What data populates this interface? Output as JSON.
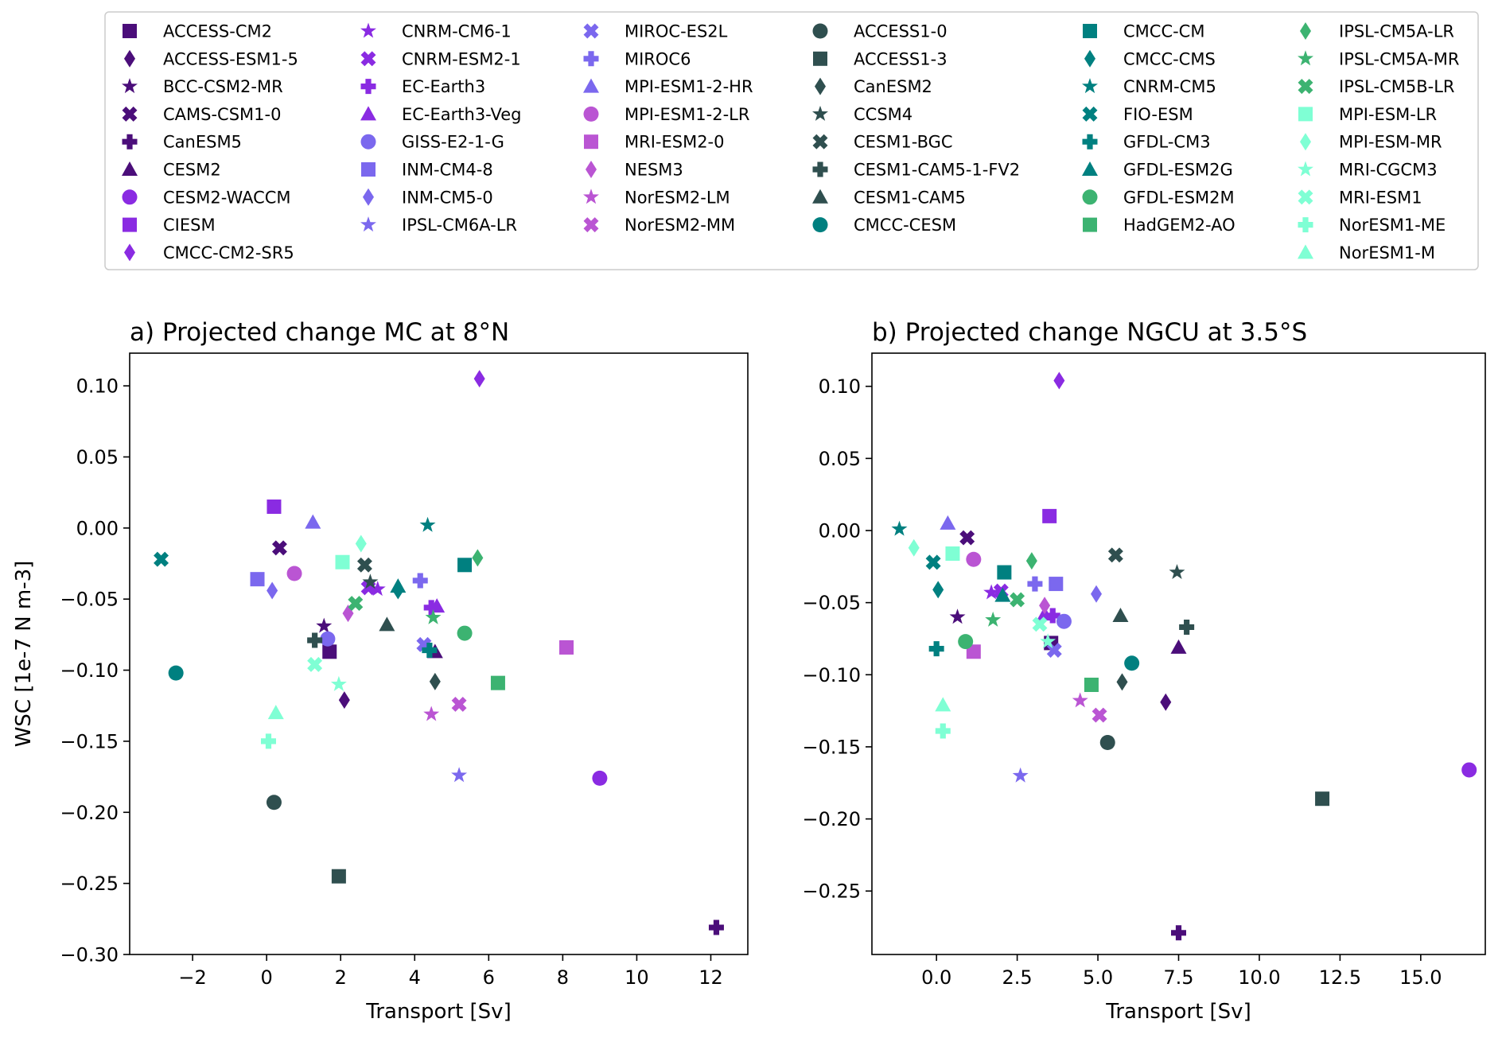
{
  "chart_data": {
    "type": "scatter",
    "legend": {
      "placement": "top",
      "entries": [
        {
          "name": "ACCESS-CM2",
          "marker": "square",
          "color": "#4b0e7a"
        },
        {
          "name": "ACCESS-ESM1-5",
          "marker": "diamond",
          "color": "#4b0e7a"
        },
        {
          "name": "BCC-CSM2-MR",
          "marker": "star",
          "color": "#4b0e7a"
        },
        {
          "name": "CAMS-CSM1-0",
          "marker": "x",
          "color": "#4b0e7a"
        },
        {
          "name": "CanESM5",
          "marker": "plus",
          "color": "#4b0e7a"
        },
        {
          "name": "CESM2",
          "marker": "triangle",
          "color": "#4b0e7a"
        },
        {
          "name": "CESM2-WACCM",
          "marker": "circle",
          "color": "#8a2be2"
        },
        {
          "name": "CIESM",
          "marker": "square",
          "color": "#8a2be2"
        },
        {
          "name": "CMCC-CM2-SR5",
          "marker": "diamond",
          "color": "#8a2be2"
        },
        {
          "name": "CNRM-CM6-1",
          "marker": "star",
          "color": "#8a2be2"
        },
        {
          "name": "CNRM-ESM2-1",
          "marker": "x",
          "color": "#8a2be2"
        },
        {
          "name": "EC-Earth3",
          "marker": "plus",
          "color": "#8a2be2"
        },
        {
          "name": "EC-Earth3-Veg",
          "marker": "triangle",
          "color": "#8a2be2"
        },
        {
          "name": "GISS-E2-1-G",
          "marker": "circle",
          "color": "#7b68ee"
        },
        {
          "name": "INM-CM4-8",
          "marker": "square",
          "color": "#7b68ee"
        },
        {
          "name": "INM-CM5-0",
          "marker": "diamond",
          "color": "#7b68ee"
        },
        {
          "name": "IPSL-CM6A-LR",
          "marker": "star",
          "color": "#7b68ee"
        },
        {
          "name": "MIROC-ES2L",
          "marker": "x",
          "color": "#7b68ee"
        },
        {
          "name": "MIROC6",
          "marker": "plus",
          "color": "#7b68ee"
        },
        {
          "name": "MPI-ESM1-2-HR",
          "marker": "triangle",
          "color": "#7b68ee"
        },
        {
          "name": "MPI-ESM1-2-LR",
          "marker": "circle",
          "color": "#ba55d3"
        },
        {
          "name": "MRI-ESM2-0",
          "marker": "square",
          "color": "#ba55d3"
        },
        {
          "name": "NESM3",
          "marker": "diamond",
          "color": "#ba55d3"
        },
        {
          "name": "NorESM2-LM",
          "marker": "star",
          "color": "#ba55d3"
        },
        {
          "name": "NorESM2-MM",
          "marker": "x",
          "color": "#ba55d3"
        },
        {
          "name": "ACCESS1-0",
          "marker": "circle",
          "color": "#2f4f4f"
        },
        {
          "name": "ACCESS1-3",
          "marker": "square",
          "color": "#2f4f4f"
        },
        {
          "name": "CanESM2",
          "marker": "diamond",
          "color": "#2f4f4f"
        },
        {
          "name": "CCSM4",
          "marker": "star",
          "color": "#2f4f4f"
        },
        {
          "name": "CESM1-BGC",
          "marker": "x",
          "color": "#2f4f4f"
        },
        {
          "name": "CESM1-CAM5-1-FV2",
          "marker": "plus",
          "color": "#2f4f4f"
        },
        {
          "name": "CESM1-CAM5",
          "marker": "triangle",
          "color": "#2f4f4f"
        },
        {
          "name": "CMCC-CESM",
          "marker": "circle",
          "color": "#008080"
        },
        {
          "name": "CMCC-CM",
          "marker": "square",
          "color": "#008080"
        },
        {
          "name": "CMCC-CMS",
          "marker": "diamond",
          "color": "#008080"
        },
        {
          "name": "CNRM-CM5",
          "marker": "star",
          "color": "#008080"
        },
        {
          "name": "FIO-ESM",
          "marker": "x",
          "color": "#008080"
        },
        {
          "name": "GFDL-CM3",
          "marker": "plus",
          "color": "#008080"
        },
        {
          "name": "GFDL-ESM2G",
          "marker": "triangle",
          "color": "#008080"
        },
        {
          "name": "GFDL-ESM2M",
          "marker": "circle",
          "color": "#3cb371"
        },
        {
          "name": "HadGEM2-AO",
          "marker": "square",
          "color": "#3cb371"
        },
        {
          "name": "IPSL-CM5A-LR",
          "marker": "diamond",
          "color": "#3cb371"
        },
        {
          "name": "IPSL-CM5A-MR",
          "marker": "star",
          "color": "#3cb371"
        },
        {
          "name": "IPSL-CM5B-LR",
          "marker": "x",
          "color": "#3cb371"
        },
        {
          "name": "MPI-ESM-LR",
          "marker": "square",
          "color": "#7fffd4"
        },
        {
          "name": "MPI-ESM-MR",
          "marker": "diamond",
          "color": "#7fffd4"
        },
        {
          "name": "MRI-CGCM3",
          "marker": "star",
          "color": "#7fffd4"
        },
        {
          "name": "MRI-ESM1",
          "marker": "x",
          "color": "#7fffd4"
        },
        {
          "name": "NorESM1-ME",
          "marker": "plus",
          "color": "#7fffd4"
        },
        {
          "name": "NorESM1-M",
          "marker": "triangle",
          "color": "#7fffd4"
        }
      ]
    },
    "panels": [
      {
        "title": "a) Projected change MC at 8°N",
        "xlabel": "Transport [Sv]",
        "ylabel": "WSC [1e-7 N m-3]",
        "grid": false,
        "xlim": [
          -3.7,
          13.0
        ],
        "ylim": [
          -0.3,
          0.123
        ],
        "xticks": [
          -2,
          0,
          2,
          4,
          6,
          8,
          10,
          12
        ],
        "xtick_labels": [
          "−2",
          "0",
          "2",
          "4",
          "6",
          "8",
          "10",
          "12"
        ],
        "yticks": [
          0.1,
          0.05,
          0.0,
          -0.05,
          -0.1,
          -0.15,
          -0.2,
          -0.25,
          -0.3
        ],
        "ytick_labels": [
          "0.10",
          "0.05",
          "0.00",
          "−0.05",
          "−0.10",
          "−0.15",
          "−0.20",
          "−0.25",
          "−0.30"
        ],
        "points": [
          {
            "model": "ACCESS-CM2",
            "x": 1.7,
            "y": -0.087
          },
          {
            "model": "ACCESS-ESM1-5",
            "x": 2.1,
            "y": -0.121
          },
          {
            "model": "BCC-CSM2-MR",
            "x": 1.55,
            "y": -0.069
          },
          {
            "model": "CAMS-CSM1-0",
            "x": 0.35,
            "y": -0.014
          },
          {
            "model": "CanESM5",
            "x": 12.15,
            "y": -0.281
          },
          {
            "model": "CESM2",
            "x": 4.55,
            "y": -0.087
          },
          {
            "model": "CESM2-WACCM",
            "x": 9.0,
            "y": -0.176
          },
          {
            "model": "CIESM",
            "x": 0.2,
            "y": 0.015
          },
          {
            "model": "CMCC-CM2-SR5",
            "x": 5.75,
            "y": 0.105
          },
          {
            "model": "CNRM-CM6-1",
            "x": 3.0,
            "y": -0.043
          },
          {
            "model": "CNRM-ESM2-1",
            "x": 2.75,
            "y": -0.042
          },
          {
            "model": "EC-Earth3",
            "x": 4.45,
            "y": -0.056
          },
          {
            "model": "EC-Earth3-Veg",
            "x": 4.6,
            "y": -0.055
          },
          {
            "model": "GISS-E2-1-G",
            "x": 1.65,
            "y": -0.078
          },
          {
            "model": "INM-CM4-8",
            "x": -0.25,
            "y": -0.036
          },
          {
            "model": "INM-CM5-0",
            "x": 0.15,
            "y": -0.044
          },
          {
            "model": "IPSL-CM6A-LR",
            "x": 5.2,
            "y": -0.174
          },
          {
            "model": "MIROC-ES2L",
            "x": 4.25,
            "y": -0.082
          },
          {
            "model": "MIROC6",
            "x": 4.15,
            "y": -0.037
          },
          {
            "model": "MPI-ESM1-2-HR",
            "x": 1.25,
            "y": 0.004
          },
          {
            "model": "MPI-ESM1-2-LR",
            "x": 0.75,
            "y": -0.032
          },
          {
            "model": "MRI-ESM2-0",
            "x": 8.1,
            "y": -0.084
          },
          {
            "model": "NESM3",
            "x": 2.2,
            "y": -0.06
          },
          {
            "model": "NorESM2-LM",
            "x": 4.45,
            "y": -0.131
          },
          {
            "model": "NorESM2-MM",
            "x": 5.2,
            "y": -0.124
          },
          {
            "model": "ACCESS1-0",
            "x": 0.2,
            "y": -0.193
          },
          {
            "model": "ACCESS1-3",
            "x": 1.95,
            "y": -0.245
          },
          {
            "model": "CanESM2",
            "x": 4.55,
            "y": -0.108
          },
          {
            "model": "CCSM4",
            "x": 2.8,
            "y": -0.038
          },
          {
            "model": "CESM1-BGC",
            "x": 2.65,
            "y": -0.026
          },
          {
            "model": "CESM1-CAM5-1-FV2",
            "x": 1.3,
            "y": -0.079
          },
          {
            "model": "CESM1-CAM5",
            "x": 3.25,
            "y": -0.068
          },
          {
            "model": "CMCC-CESM",
            "x": -2.45,
            "y": -0.102
          },
          {
            "model": "CMCC-CM",
            "x": 5.35,
            "y": -0.026
          },
          {
            "model": "CMCC-CMS",
            "x": 3.55,
            "y": -0.044
          },
          {
            "model": "CNRM-CM5",
            "x": 4.35,
            "y": 0.002
          },
          {
            "model": "FIO-ESM",
            "x": -2.85,
            "y": -0.022
          },
          {
            "model": "GFDL-CM3",
            "x": 4.4,
            "y": -0.086
          },
          {
            "model": "GFDL-ESM2G",
            "x": 3.55,
            "y": -0.041
          },
          {
            "model": "GFDL-ESM2M",
            "x": 5.35,
            "y": -0.074
          },
          {
            "model": "HadGEM2-AO",
            "x": 6.25,
            "y": -0.109
          },
          {
            "model": "IPSL-CM5A-LR",
            "x": 5.7,
            "y": -0.021
          },
          {
            "model": "IPSL-CM5A-MR",
            "x": 4.5,
            "y": -0.063
          },
          {
            "model": "IPSL-CM5B-LR",
            "x": 2.4,
            "y": -0.053
          },
          {
            "model": "MPI-ESM-LR",
            "x": 2.05,
            "y": -0.024
          },
          {
            "model": "MPI-ESM-MR",
            "x": 2.55,
            "y": -0.011
          },
          {
            "model": "MRI-CGCM3",
            "x": 1.95,
            "y": -0.11
          },
          {
            "model": "MRI-ESM1",
            "x": 1.3,
            "y": -0.096
          },
          {
            "model": "NorESM1-ME",
            "x": 0.05,
            "y": -0.15
          },
          {
            "model": "NorESM1-M",
            "x": 0.25,
            "y": -0.13
          }
        ]
      },
      {
        "title": "b) Projected change NGCU at 3.5°S",
        "xlabel": "Transport [Sv]",
        "ylabel": "",
        "grid": false,
        "xlim": [
          -2.0,
          17.0
        ],
        "ylim": [
          -0.294,
          0.123
        ],
        "xticks": [
          0,
          2.5,
          5,
          7.5,
          10,
          12.5,
          15
        ],
        "xtick_labels": [
          "0.0",
          "2.5",
          "5.0",
          "7.5",
          "10.0",
          "12.5",
          "15.0"
        ],
        "yticks": [
          0.1,
          0.05,
          0.0,
          -0.05,
          -0.1,
          -0.15,
          -0.2,
          -0.25
        ],
        "ytick_labels": [
          "0.10",
          "0.05",
          "0.00",
          "−0.05",
          "−0.10",
          "−0.15",
          "−0.20",
          "−0.25"
        ],
        "points": [
          {
            "model": "ACCESS-CM2",
            "x": 3.55,
            "y": -0.078
          },
          {
            "model": "ACCESS-ESM1-5",
            "x": 7.1,
            "y": -0.119
          },
          {
            "model": "BCC-CSM2-MR",
            "x": 0.65,
            "y": -0.06
          },
          {
            "model": "CAMS-CSM1-0",
            "x": 0.95,
            "y": -0.005
          },
          {
            "model": "CanESM5",
            "x": 7.5,
            "y": -0.279
          },
          {
            "model": "CESM2",
            "x": 7.5,
            "y": -0.081
          },
          {
            "model": "CESM2-WACCM",
            "x": 16.5,
            "y": -0.166
          },
          {
            "model": "CIESM",
            "x": 3.5,
            "y": 0.01
          },
          {
            "model": "CMCC-CM2-SR5",
            "x": 3.8,
            "y": 0.104
          },
          {
            "model": "CNRM-CM6-1",
            "x": 1.7,
            "y": -0.043
          },
          {
            "model": "CNRM-ESM2-1",
            "x": 2.0,
            "y": -0.042
          },
          {
            "model": "EC-Earth3",
            "x": 3.6,
            "y": -0.059
          },
          {
            "model": "EC-Earth3-Veg",
            "x": 3.35,
            "y": -0.058
          },
          {
            "model": "GISS-E2-1-G",
            "x": 3.95,
            "y": -0.063
          },
          {
            "model": "INM-CM4-8",
            "x": 3.7,
            "y": -0.037
          },
          {
            "model": "INM-CM5-0",
            "x": 4.95,
            "y": -0.044
          },
          {
            "model": "IPSL-CM6A-LR",
            "x": 2.6,
            "y": -0.17
          },
          {
            "model": "MIROC-ES2L",
            "x": 3.65,
            "y": -0.083
          },
          {
            "model": "MIROC6",
            "x": 3.05,
            "y": -0.037
          },
          {
            "model": "MPI-ESM1-2-HR",
            "x": 0.35,
            "y": 0.005
          },
          {
            "model": "MPI-ESM1-2-LR",
            "x": 1.15,
            "y": -0.02
          },
          {
            "model": "MRI-ESM2-0",
            "x": 1.15,
            "y": -0.084
          },
          {
            "model": "NESM3",
            "x": 3.35,
            "y": -0.052
          },
          {
            "model": "NorESM2-LM",
            "x": 4.45,
            "y": -0.118
          },
          {
            "model": "NorESM2-MM",
            "x": 5.05,
            "y": -0.128
          },
          {
            "model": "ACCESS1-0",
            "x": 5.3,
            "y": -0.147
          },
          {
            "model": "ACCESS1-3",
            "x": 11.95,
            "y": -0.186
          },
          {
            "model": "CanESM2",
            "x": 5.75,
            "y": -0.105
          },
          {
            "model": "CCSM4",
            "x": 7.45,
            "y": -0.029
          },
          {
            "model": "CESM1-BGC",
            "x": 5.55,
            "y": -0.017
          },
          {
            "model": "CESM1-CAM5-1-FV2",
            "x": 7.75,
            "y": -0.067
          },
          {
            "model": "CESM1-CAM5",
            "x": 5.7,
            "y": -0.059
          },
          {
            "model": "CMCC-CESM",
            "x": 6.05,
            "y": -0.092
          },
          {
            "model": "CMCC-CM",
            "x": 2.1,
            "y": -0.029
          },
          {
            "model": "CMCC-CMS",
            "x": 0.05,
            "y": -0.041
          },
          {
            "model": "CNRM-CM5",
            "x": -1.15,
            "y": 0.001
          },
          {
            "model": "FIO-ESM",
            "x": -0.1,
            "y": -0.022
          },
          {
            "model": "GFDL-CM3",
            "x": 0.0,
            "y": -0.082
          },
          {
            "model": "GFDL-ESM2G",
            "x": 2.05,
            "y": -0.045
          },
          {
            "model": "GFDL-ESM2M",
            "x": 0.9,
            "y": -0.077
          },
          {
            "model": "HadGEM2-AO",
            "x": 4.8,
            "y": -0.107
          },
          {
            "model": "IPSL-CM5A-LR",
            "x": 2.95,
            "y": -0.021
          },
          {
            "model": "IPSL-CM5A-MR",
            "x": 1.75,
            "y": -0.062
          },
          {
            "model": "IPSL-CM5B-LR",
            "x": 2.5,
            "y": -0.048
          },
          {
            "model": "MPI-ESM-LR",
            "x": 0.5,
            "y": -0.016
          },
          {
            "model": "MPI-ESM-MR",
            "x": -0.7,
            "y": -0.012
          },
          {
            "model": "MRI-CGCM3",
            "x": 3.45,
            "y": -0.077
          },
          {
            "model": "MRI-ESM1",
            "x": 3.2,
            "y": -0.065
          },
          {
            "model": "NorESM1-ME",
            "x": 0.2,
            "y": -0.139
          },
          {
            "model": "NorESM1-M",
            "x": 0.2,
            "y": -0.121
          }
        ]
      }
    ]
  }
}
